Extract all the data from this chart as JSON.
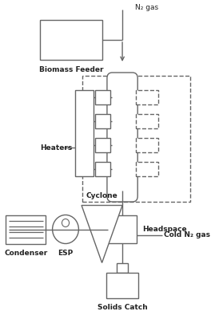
{
  "bg_color": "#ffffff",
  "line_color": "#666666",
  "line_width": 1.0,
  "text_color": "#222222",
  "n2_label": "N₂ gas",
  "biomass_label": "Biomass Feeder",
  "heaters_label": "Heaters",
  "headspace_label": "Headspace",
  "cold_n2_label": "Cold N₂ gas",
  "condenser_label": "Condenser",
  "esp_label": "ESP",
  "cyclone_label": "Cyclone",
  "solids_label": "Solids Catch"
}
